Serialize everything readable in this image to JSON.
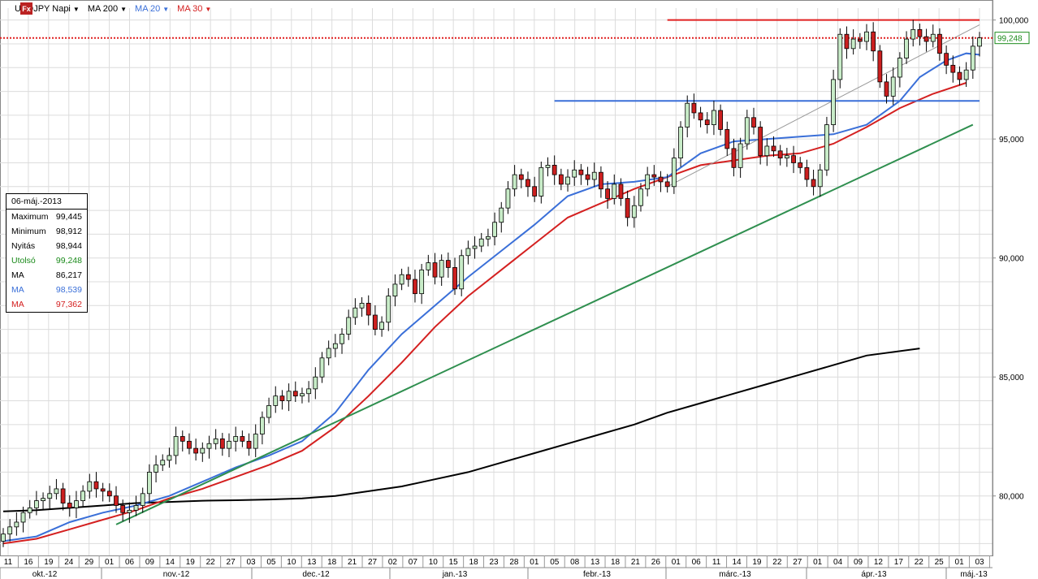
{
  "toolbar": {
    "icon": "fx-icon",
    "symbol": "USDJPY Napi",
    "indicators": [
      {
        "label": "MA 200",
        "color": "#000000"
      },
      {
        "label": "MA 20",
        "color": "#3a6fd8"
      },
      {
        "label": "MA 30",
        "color": "#d42020"
      }
    ]
  },
  "infobox": {
    "date": "06-máj.-2013",
    "rows": [
      {
        "label": "Maximum",
        "value": "99,445",
        "color": "#000000"
      },
      {
        "label": "Minimum",
        "value": "98,912",
        "color": "#000000"
      },
      {
        "label": "Nyitás",
        "value": "98,944",
        "color": "#000000"
      },
      {
        "label": "Utolsó",
        "value": "99,248",
        "color": "#1a8a1a"
      },
      {
        "label": "MA",
        "value": "86,217",
        "color": "#000000"
      },
      {
        "label": "MA",
        "value": "98,539",
        "color": "#3a6fd8"
      },
      {
        "label": "MA",
        "value": "97,362",
        "color": "#d42020"
      }
    ]
  },
  "chart_data": {
    "type": "candlestick",
    "ylim": [
      77.5,
      100.5
    ],
    "yticks": [
      {
        "value": 80,
        "label": "80,000"
      },
      {
        "value": 85,
        "label": "85,000"
      },
      {
        "value": 90,
        "label": "90,000"
      },
      {
        "value": 95,
        "label": "95,000"
      },
      {
        "value": 100,
        "label": "100,000"
      }
    ],
    "last_price": {
      "value": 99.248,
      "label": "99,248"
    },
    "day_labels": [
      "11",
      "16",
      "19",
      "24",
      "29",
      "01",
      "06",
      "09",
      "14",
      "19",
      "22",
      "27",
      "03",
      "05",
      "10",
      "13",
      "18",
      "21",
      "27",
      "02",
      "07",
      "10",
      "15",
      "18",
      "23",
      "28",
      "01",
      "05",
      "08",
      "13",
      "18",
      "21",
      "26",
      "01",
      "06",
      "11",
      "14",
      "19",
      "22",
      "27",
      "01",
      "04",
      "09",
      "12",
      "17",
      "22",
      "25",
      "01",
      "03"
    ],
    "month_labels": [
      "okt.-12",
      "nov.-12",
      "dec.-12",
      "jan.-13",
      "febr.-13",
      "márc.-13",
      "ápr.-13",
      "máj.-13"
    ],
    "closes": [
      78.4,
      78.7,
      78.9,
      79.3,
      79.5,
      79.8,
      79.9,
      80.1,
      80.3,
      79.7,
      79.5,
      79.8,
      80.2,
      80.6,
      80.3,
      80.2,
      80.0,
      79.6,
      79.3,
      79.4,
      79.6,
      80.1,
      81.0,
      81.3,
      81.5,
      81.7,
      82.5,
      82.3,
      82.0,
      81.8,
      82.0,
      82.2,
      82.4,
      82.0,
      82.3,
      82.5,
      82.3,
      82.0,
      82.6,
      83.3,
      83.8,
      84.2,
      84.0,
      84.4,
      84.2,
      84.3,
      84.5,
      85.0,
      85.8,
      86.2,
      86.4,
      86.8,
      87.5,
      87.9,
      88.1,
      87.6,
      87.0,
      87.3,
      88.4,
      88.9,
      89.3,
      89.1,
      88.5,
      89.5,
      89.8,
      89.2,
      89.9,
      89.6,
      88.7,
      90.1,
      90.4,
      90.5,
      90.8,
      90.9,
      91.5,
      92.1,
      92.9,
      93.5,
      93.3,
      93.0,
      92.6,
      93.8,
      93.9,
      93.5,
      93.1,
      93.4,
      93.7,
      93.5,
      93.3,
      93.6,
      92.9,
      92.5,
      93.1,
      92.5,
      91.7,
      92.2,
      92.9,
      93.5,
      93.4,
      93.2,
      93.0,
      94.2,
      95.5,
      96.5,
      96.1,
      95.8,
      95.6,
      96.2,
      95.4,
      94.6,
      93.8,
      94.8,
      95.9,
      95.5,
      94.3,
      94.7,
      94.5,
      94.2,
      94.3,
      94.0,
      93.8,
      93.3,
      93.0,
      93.7,
      95.6,
      97.5,
      99.4,
      98.8,
      99.2,
      99.1,
      99.5,
      98.7,
      97.4,
      96.8,
      97.6,
      98.4,
      99.2,
      99.6,
      99.3,
      99.1,
      99.4,
      98.6,
      98.1,
      97.8,
      97.5,
      97.9,
      98.9,
      99.25
    ],
    "ma200": [
      [
        0,
        79.35
      ],
      [
        5,
        79.4
      ],
      [
        10,
        79.5
      ],
      [
        15,
        79.6
      ],
      [
        20,
        79.7
      ],
      [
        25,
        79.75
      ],
      [
        30,
        79.8
      ],
      [
        35,
        79.82
      ],
      [
        40,
        79.85
      ],
      [
        45,
        79.9
      ],
      [
        50,
        80.0
      ],
      [
        55,
        80.2
      ],
      [
        60,
        80.4
      ],
      [
        65,
        80.7
      ],
      [
        70,
        81.0
      ],
      [
        75,
        81.4
      ],
      [
        80,
        81.8
      ],
      [
        85,
        82.2
      ],
      [
        90,
        82.6
      ],
      [
        95,
        83.0
      ],
      [
        100,
        83.5
      ],
      [
        105,
        83.9
      ],
      [
        110,
        84.3
      ],
      [
        115,
        84.7
      ],
      [
        120,
        85.1
      ],
      [
        125,
        85.5
      ],
      [
        130,
        85.9
      ],
      [
        138,
        86.2
      ]
    ],
    "ma20": [
      [
        0,
        78.1
      ],
      [
        5,
        78.3
      ],
      [
        10,
        78.9
      ],
      [
        15,
        79.3
      ],
      [
        20,
        79.6
      ],
      [
        25,
        80.0
      ],
      [
        30,
        80.6
      ],
      [
        35,
        81.2
      ],
      [
        40,
        81.7
      ],
      [
        45,
        82.3
      ],
      [
        50,
        83.5
      ],
      [
        55,
        85.3
      ],
      [
        60,
        86.8
      ],
      [
        65,
        88.0
      ],
      [
        70,
        89.2
      ],
      [
        75,
        90.3
      ],
      [
        80,
        91.4
      ],
      [
        85,
        92.6
      ],
      [
        90,
        93.1
      ],
      [
        95,
        93.2
      ],
      [
        100,
        93.4
      ],
      [
        105,
        94.4
      ],
      [
        110,
        94.9
      ],
      [
        115,
        95.0
      ],
      [
        120,
        95.1
      ],
      [
        125,
        95.2
      ],
      [
        130,
        95.6
      ],
      [
        135,
        96.6
      ],
      [
        138,
        97.6
      ],
      [
        142,
        98.3
      ],
      [
        145,
        98.6
      ],
      [
        147,
        98.54
      ]
    ],
    "ma30": [
      [
        0,
        78.0
      ],
      [
        5,
        78.2
      ],
      [
        10,
        78.6
      ],
      [
        15,
        79.0
      ],
      [
        20,
        79.4
      ],
      [
        25,
        79.9
      ],
      [
        30,
        80.3
      ],
      [
        35,
        80.8
      ],
      [
        40,
        81.3
      ],
      [
        45,
        81.9
      ],
      [
        50,
        82.9
      ],
      [
        55,
        84.2
      ],
      [
        60,
        85.6
      ],
      [
        65,
        87.1
      ],
      [
        70,
        88.4
      ],
      [
        75,
        89.5
      ],
      [
        80,
        90.6
      ],
      [
        85,
        91.7
      ],
      [
        90,
        92.3
      ],
      [
        95,
        92.9
      ],
      [
        100,
        93.4
      ],
      [
        105,
        93.9
      ],
      [
        110,
        94.1
      ],
      [
        115,
        94.3
      ],
      [
        120,
        94.4
      ],
      [
        125,
        94.8
      ],
      [
        130,
        95.5
      ],
      [
        135,
        96.3
      ],
      [
        140,
        96.9
      ],
      [
        145,
        97.36
      ]
    ],
    "levels": [
      {
        "name": "resistance",
        "y": 100.0,
        "x_from": 100,
        "x_to": 147,
        "color": "#e02020"
      },
      {
        "name": "support",
        "y": 96.6,
        "x_from": 83,
        "x_to": 147,
        "color": "#3a6fd8"
      },
      {
        "name": "last-price",
        "y": 99.248,
        "x_from": 0,
        "x_to": 147,
        "color": "#e02020",
        "dashed": true
      }
    ],
    "trendlines": [
      {
        "name": "green-trend",
        "from": [
          17,
          78.8
        ],
        "to": [
          146,
          95.6
        ],
        "color": "#2f8f4f"
      },
      {
        "name": "gray-trend",
        "from": [
          100,
          93.0
        ],
        "to": [
          147,
          99.8
        ],
        "color": "#999999"
      }
    ]
  }
}
